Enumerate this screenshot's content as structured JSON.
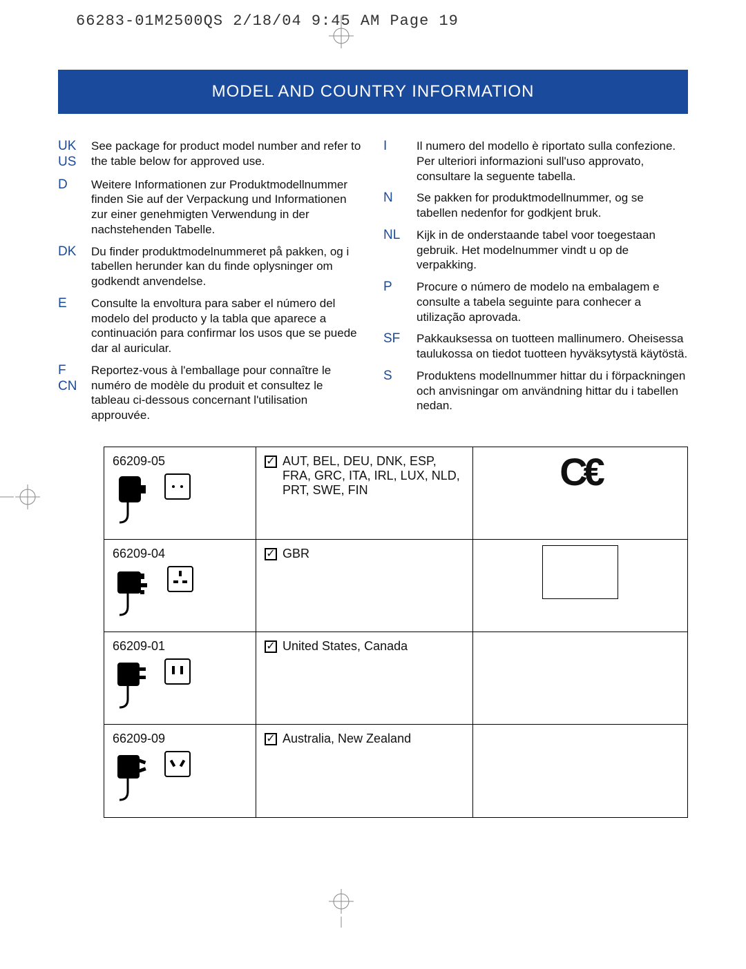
{
  "header": {
    "imprint": "66283-01M2500QS  2/18/04  9:45 AM  Page 19"
  },
  "title": "MODEL AND COUNTRY INFORMATION",
  "leftColumn": [
    {
      "code": "UK\nUS",
      "text": "See package for product model number and refer to the table below for approved use."
    },
    {
      "code": "D",
      "text": "Weitere Informationen zur Produktmodellnummer finden Sie auf der Verpackung und Informationen zur einer genehmigten Verwendung in der nachstehenden Tabelle."
    },
    {
      "code": "DK",
      "text": "Du finder produktmodelnummeret på pakken, og i tabellen herunder kan du finde oplysninger om godkendt anvendelse."
    },
    {
      "code": "E",
      "text": "Consulte la envoltura para saber el número del modelo del producto y la tabla que aparece a continuación para confirmar los usos que se puede dar al auricular."
    },
    {
      "code": "F\nCN",
      "text": "Reportez-vous à l'emballage pour connaître le numéro de modèle du produit et consultez le tableau ci-dessous concernant l'utilisation approuvée."
    }
  ],
  "rightColumn": [
    {
      "code": "I",
      "text": "Il numero del modello è riportato sulla confezione. Per ulteriori informazioni sull'uso approvato, consultare la seguente tabella."
    },
    {
      "code": "N",
      "text": "Se pakken for produktmodellnummer, og se tabellen nedenfor for godkjent bruk."
    },
    {
      "code": "NL",
      "text": "Kijk in de onderstaande tabel voor toegestaan gebruik. Het modelnummer vindt u op de verpakking."
    },
    {
      "code": "P",
      "text": "Procure o número de modelo na embalagem e consulte a tabela seguinte para conhecer a utilização aprovada."
    },
    {
      "code": "SF",
      "text": "Pakkauksessa on tuotteen mallinumero. Oheisessa taulukossa on tiedot tuotteen hyväksytystä käytöstä."
    },
    {
      "code": "S",
      "text": "Produktens modellnummer hittar du i förpackningen och anvisningar om användning hittar du i tabellen nedan."
    }
  ],
  "tableRows": [
    {
      "model": "66209-05",
      "plugType": "eu",
      "countries": "AUT, BEL, DEU, DNK, ESP, FRA, GRC, ITA, IRL, LUX, NLD, PRT, SWE, FIN",
      "cert": "CE"
    },
    {
      "model": "66209-04",
      "plugType": "uk",
      "countries": "GBR",
      "cert": "empty-box"
    },
    {
      "model": "66209-01",
      "plugType": "us",
      "countries": "United States, Canada",
      "cert": ""
    },
    {
      "model": "66209-09",
      "plugType": "au",
      "countries": "Australia, New Zealand",
      "cert": ""
    }
  ],
  "checkGlyph": "✓",
  "colors": {
    "titleBg": "#1a4a9c",
    "titleText": "#ffffff",
    "accent": "#1a4a9c",
    "border": "#000000"
  }
}
